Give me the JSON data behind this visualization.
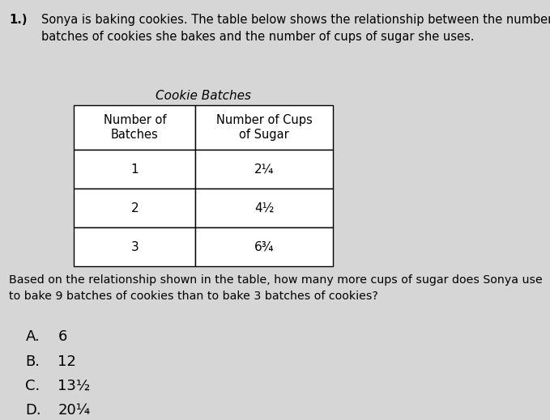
{
  "question_number": "1.)",
  "intro_text": "Sonya is baking cookies. The table below shows the relationship between the number of\nbatches of cookies she bakes and the number of cups of sugar she uses.",
  "table_title": "Cookie Batches",
  "col1_header": "Number of\nBatches",
  "col2_header": "Number of Cups\nof Sugar",
  "table_data": [
    [
      "1",
      "2¼"
    ],
    [
      "2",
      "4½"
    ],
    [
      "3",
      "6¾"
    ]
  ],
  "question_text": "Based on the relationship shown in the table, how many more cups of sugar does Sonya use\nto bake 9 batches of cookies than to bake 3 batches of cookies?",
  "answer_choices": [
    {
      "letter": "A.",
      "text": "6"
    },
    {
      "letter": "B.",
      "text": "12"
    },
    {
      "letter": "C.",
      "text": "13½"
    },
    {
      "letter": "D.",
      "text": "20¼"
    }
  ],
  "bg_color": "#d6d6d6",
  "table_bg_color": "#ffffff",
  "text_color": "#000000",
  "font_size_intro": 10.5,
  "font_size_table": 11,
  "font_size_answers": 13
}
